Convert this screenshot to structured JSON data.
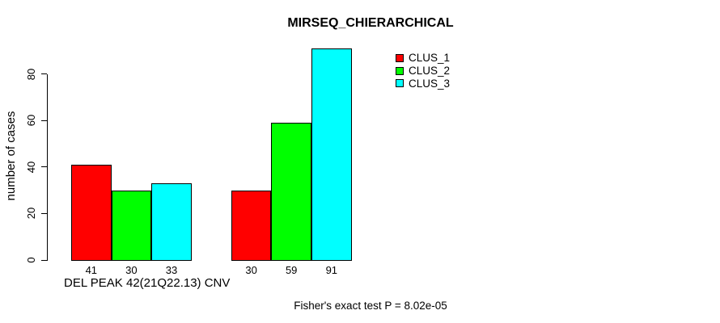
{
  "chart_data": {
    "type": "bar",
    "title": "MIRSEQ_CHIERARCHICAL",
    "ylabel": "number of cases",
    "xlabel": "DEL PEAK 42(21Q22.13) CNV",
    "annotation": "Fisher's exact test P = 8.02e-05",
    "group_count": 2,
    "series": [
      {
        "name": "CLUS_1",
        "color": "#ff0000",
        "values": [
          41,
          30
        ]
      },
      {
        "name": "CLUS_2",
        "color": "#00ff00",
        "values": [
          30,
          59
        ]
      },
      {
        "name": "CLUS_3",
        "color": "#00ffff",
        "values": [
          33,
          91
        ]
      }
    ],
    "bar_value_labels": [
      [
        "41",
        "30",
        "33"
      ],
      [
        "30",
        "59",
        "91"
      ]
    ],
    "yticks": [
      "0",
      "20",
      "40",
      "60",
      "80"
    ],
    "ylim": [
      0,
      93
    ],
    "grid": false,
    "legend_position": "top-right",
    "bar_border_color": "#000000",
    "background_color": "#ffffff"
  }
}
